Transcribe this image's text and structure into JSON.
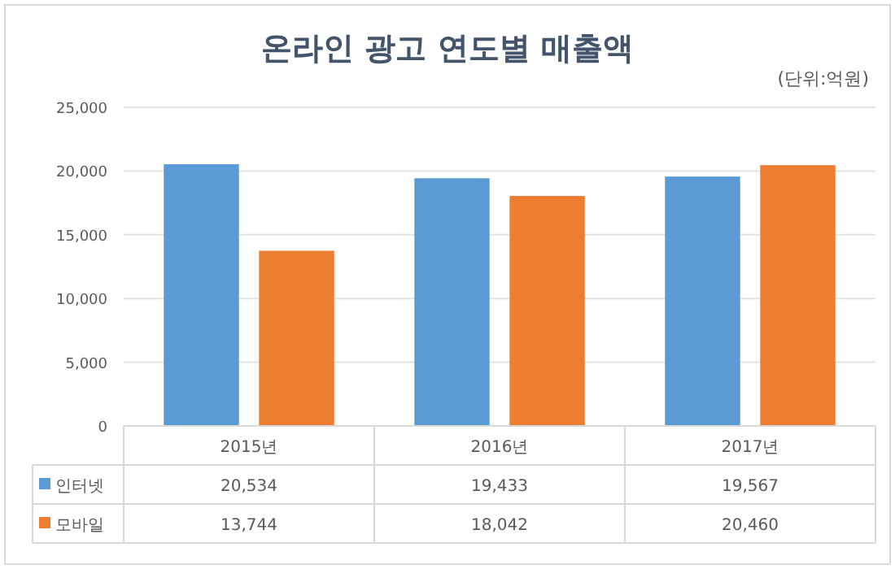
{
  "chart_data": {
    "type": "bar",
    "title": "온라인 광고 연도별 매출액",
    "subtitle": "(단위:억원)",
    "categories": [
      "2015년",
      "2016년",
      "2017년"
    ],
    "series": [
      {
        "name": "인터넷",
        "color": "#5b9bd5",
        "values": [
          20534,
          19433,
          19567
        ],
        "value_labels": [
          "20,534",
          "19,433",
          "19,567"
        ]
      },
      {
        "name": "모바일",
        "color": "#ed7d31",
        "values": [
          13744,
          18042,
          20460
        ],
        "value_labels": [
          "13,744",
          "18,042",
          "20,460"
        ]
      }
    ],
    "ylim": [
      0,
      25000
    ],
    "yticks": [
      {
        "value": 0,
        "label": "0"
      },
      {
        "value": 5000,
        "label": "5,000"
      },
      {
        "value": 10000,
        "label": "10,000"
      },
      {
        "value": 15000,
        "label": "15,000"
      },
      {
        "value": 20000,
        "label": "20,000"
      },
      {
        "value": 25000,
        "label": "25,000"
      }
    ],
    "grid": "y",
    "legend": "bottom"
  }
}
